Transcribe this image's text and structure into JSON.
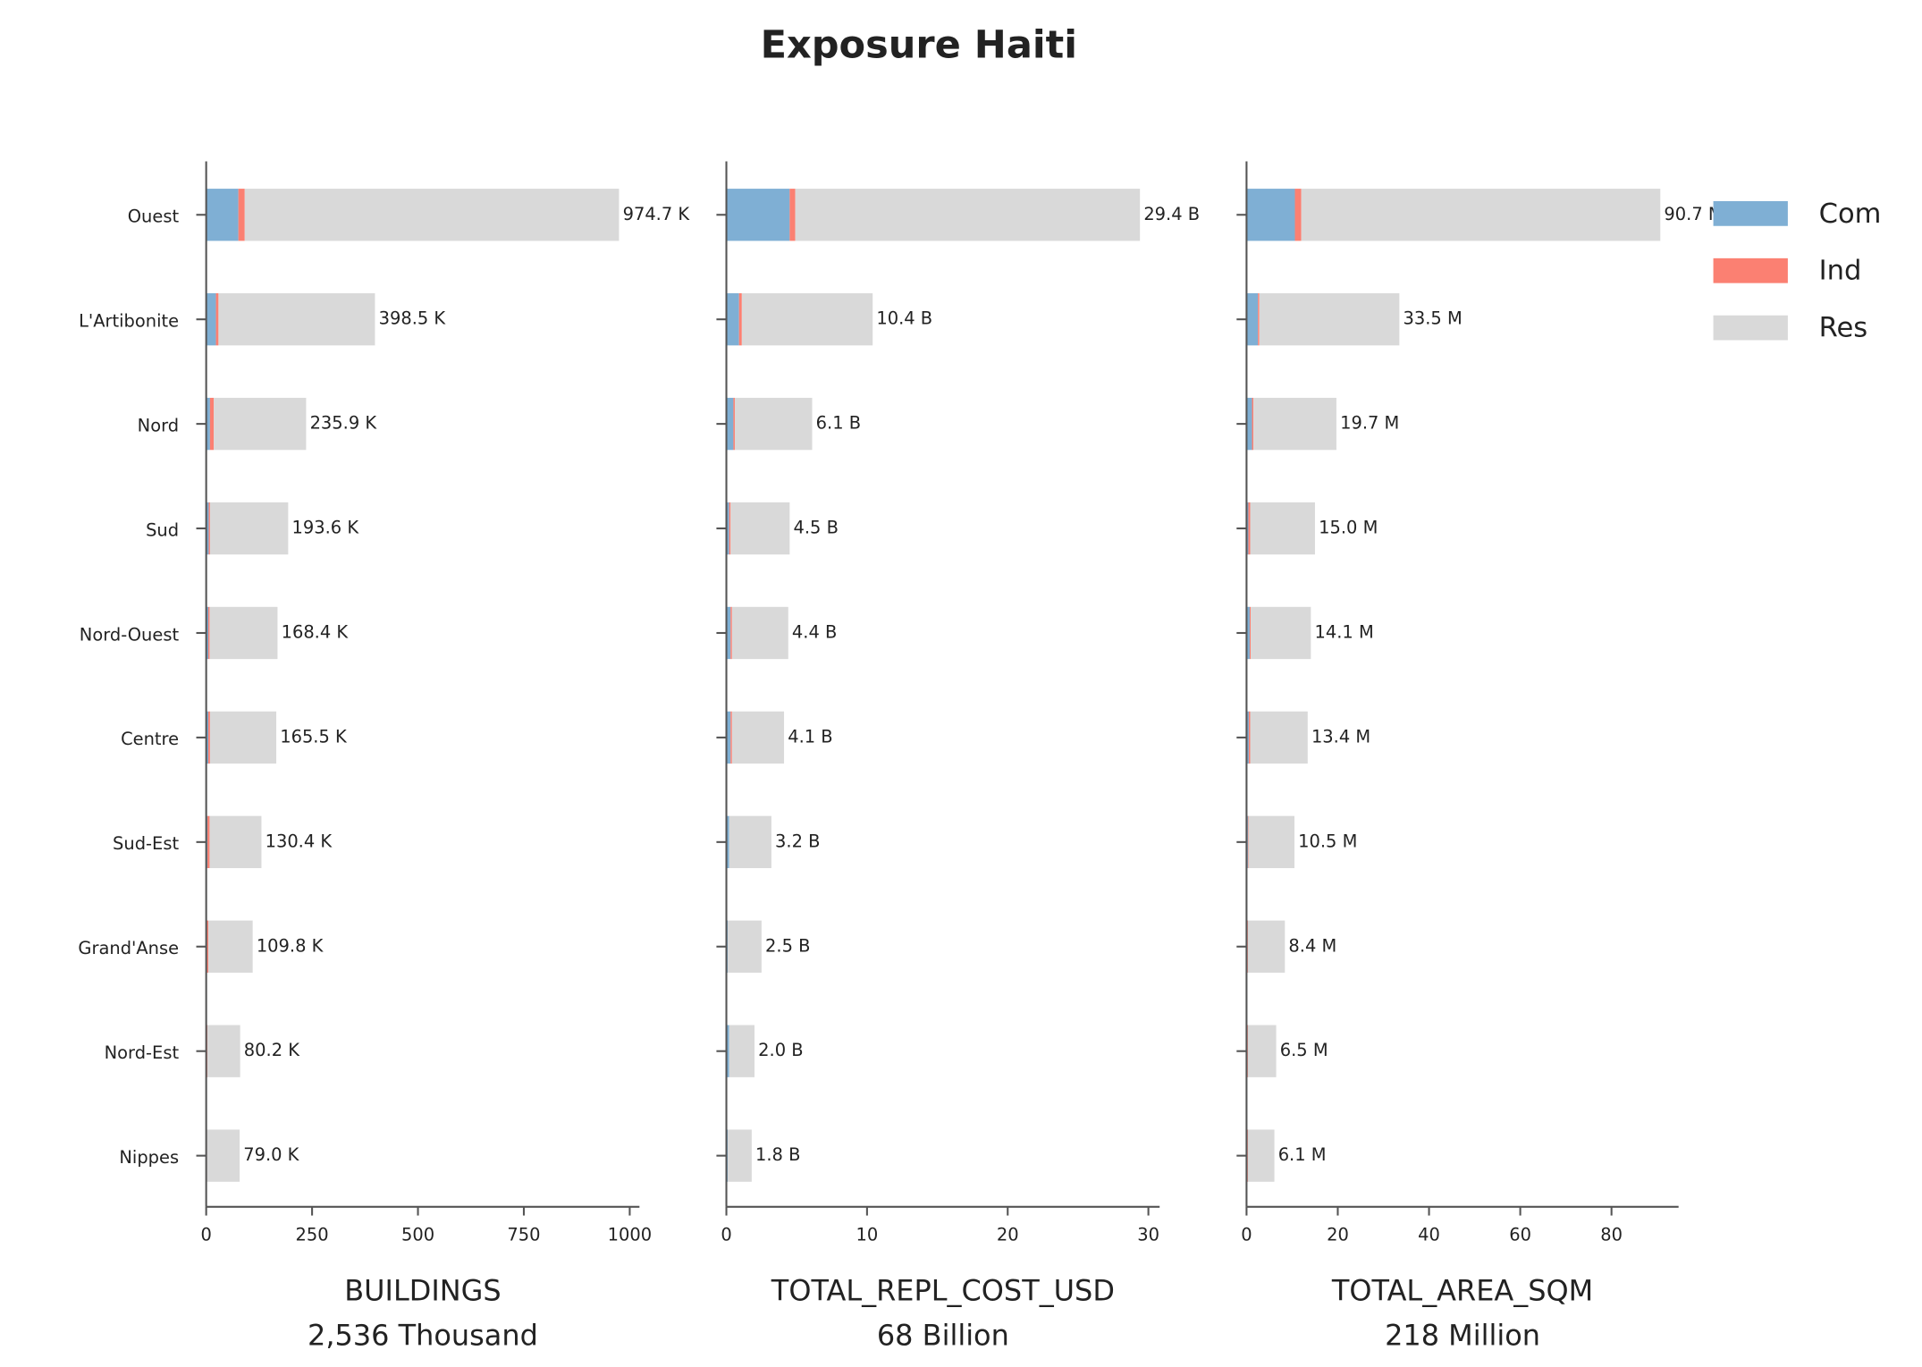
{
  "title": "Exposure Haiti",
  "chart_data": [
    {
      "type": "bar",
      "orientation": "horizontal",
      "categories": [
        "Ouest",
        "L'Artibonite",
        "Nord",
        "Sud",
        "Nord-Ouest",
        "Centre",
        "Sud-Est",
        "Grand'Anse",
        "Nord-Est",
        "Nippes"
      ],
      "series": [
        {
          "name": "Com",
          "color": "#7fafd4",
          "values": [
            76,
            23,
            9,
            6,
            5,
            5,
            3,
            2,
            2,
            1
          ]
        },
        {
          "name": "Ind",
          "color": "#fb8072",
          "values": [
            15,
            6,
            9,
            3,
            3,
            4,
            5,
            3,
            1,
            1
          ]
        },
        {
          "name": "Res",
          "color": "#d9d9d9",
          "values": [
            883.7,
            369.5,
            217.9,
            184.6,
            160.4,
            156.5,
            122.4,
            104.8,
            77.2,
            77.0
          ]
        }
      ],
      "total_labels": [
        "974.7 K",
        "398.5 K",
        "235.9 K",
        "193.6 K",
        "168.4 K",
        "165.5 K",
        "130.4 K",
        "109.8 K",
        "80.2 K",
        "79.0 K"
      ],
      "xlabel": [
        "BUILDINGS",
        "2,536 Thousand"
      ],
      "xlim": [
        0,
        1023
      ],
      "xticks": [
        0,
        250,
        500,
        750,
        1000
      ]
    },
    {
      "type": "bar",
      "orientation": "horizontal",
      "series": [
        {
          "name": "Com",
          "color": "#7fafd4",
          "values": [
            4.5,
            0.9,
            0.5,
            0.2,
            0.3,
            0.3,
            0.2,
            0.1,
            0.2,
            0.1
          ]
        },
        {
          "name": "Ind",
          "color": "#fb8072",
          "values": [
            0.4,
            0.2,
            0.1,
            0.1,
            0.1,
            0.1,
            0.0,
            0.0,
            0.0,
            0.0
          ]
        },
        {
          "name": "Res",
          "color": "#d9d9d9",
          "values": [
            24.5,
            9.3,
            5.5,
            4.2,
            4.0,
            3.7,
            3.0,
            2.4,
            1.8,
            1.7
          ]
        }
      ],
      "total_labels": [
        "29.4 B",
        "10.4 B",
        "6.1 B",
        "4.5 B",
        "4.4 B",
        "4.1 B",
        "3.2 B",
        "2.5 B",
        "2.0 B",
        "1.8 B"
      ],
      "xlabel": [
        "TOTAL_REPL_COST_USD",
        "68 Billion"
      ],
      "xlim": [
        0,
        30.8
      ],
      "xticks": [
        0,
        10,
        20,
        30
      ]
    },
    {
      "type": "bar",
      "orientation": "horizontal",
      "series": [
        {
          "name": "Com",
          "color": "#7fafd4",
          "values": [
            10.6,
            2.5,
            1.2,
            0.4,
            0.7,
            0.5,
            0.3,
            0.2,
            0.2,
            0.2
          ]
        },
        {
          "name": "Ind",
          "color": "#fb8072",
          "values": [
            1.4,
            0.3,
            0.3,
            0.4,
            0.2,
            0.3,
            0.1,
            0.1,
            0.1,
            0.1
          ]
        },
        {
          "name": "Res",
          "color": "#d9d9d9",
          "values": [
            78.7,
            30.7,
            18.2,
            14.2,
            13.2,
            12.6,
            10.1,
            8.1,
            6.2,
            5.8
          ]
        }
      ],
      "total_labels": [
        "90.7 M",
        "33.5 M",
        "19.7 M",
        "15.0 M",
        "14.1 M",
        "13.4 M",
        "10.5 M",
        "8.4 M",
        "6.5 M",
        "6.1 M"
      ],
      "xlabel": [
        "TOTAL_AREA_SQM",
        "218 Million"
      ],
      "xlim": [
        0,
        94.7
      ],
      "xticks": [
        0,
        20,
        40,
        60,
        80
      ]
    }
  ]
}
